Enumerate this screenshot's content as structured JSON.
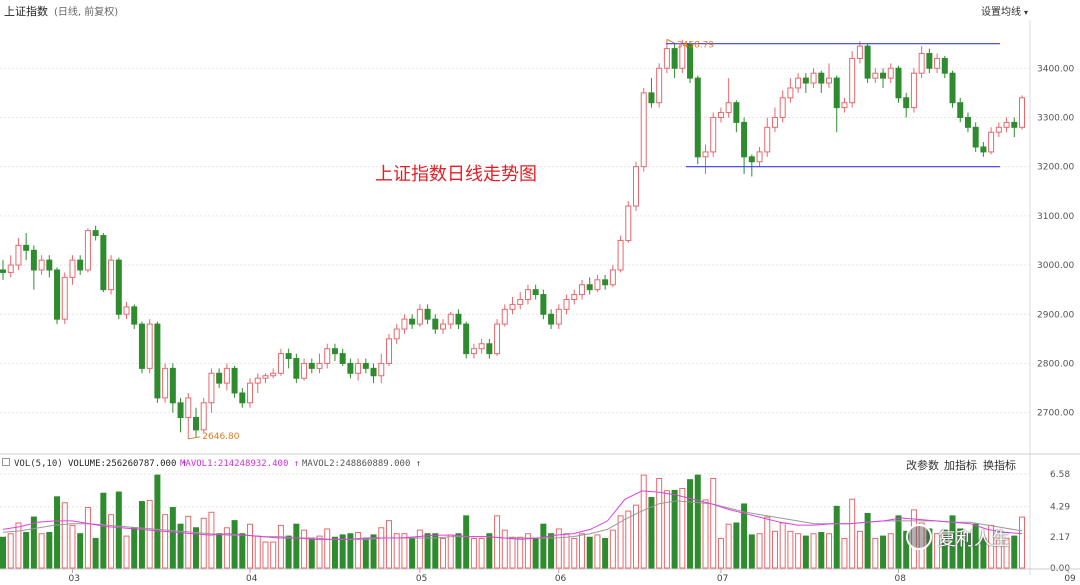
{
  "header": {
    "title": "上证指数",
    "subtitle": "(日线, 前复权)",
    "ma_setting": "设置均线"
  },
  "annotation": {
    "caption": "上证指数日线走势图",
    "high_label": "3458.79",
    "low_label": "2646.80"
  },
  "volume_panel": {
    "label": "VOL(5,10)",
    "volume": "VOLUME:256260787.000",
    "mavol1": "MAVOL1:214248932.400",
    "mavol2": "MAVOL2:248860889.000",
    "tools": {
      "params": "改参数",
      "add": "加指标",
      "switch": "换指标"
    },
    "axis_labels": [
      "6.58",
      "4.29",
      "2.17",
      "0.00"
    ]
  },
  "watermark": "复利人生",
  "colors": {
    "up": "#e8686e",
    "down": "#2e8b2e",
    "mavol1": "#e040e0",
    "mavol2": "#999999",
    "channel": "#3c3cf0",
    "caption": "#e41f25"
  },
  "chart_data": {
    "type": "candlestick",
    "price_ticks": [
      2700,
      2800,
      2900,
      3000,
      3100,
      3200,
      3300,
      3400
    ],
    "price_range": [
      2620,
      3490
    ],
    "month_labels": [
      "03",
      "04",
      "05",
      "06",
      "07",
      "08",
      "09"
    ],
    "month_start_index": [
      9,
      32,
      54,
      72,
      93,
      116,
      138
    ],
    "high": 3458.79,
    "low": 2646.8,
    "channel_top": 3450,
    "channel_bottom": 3200,
    "candles": [
      [
        2990,
        2985,
        3010,
        2970
      ],
      [
        2985,
        3000,
        3020,
        2975
      ],
      [
        3000,
        3040,
        3055,
        2990
      ],
      [
        3040,
        3030,
        3065,
        3010
      ],
      [
        3030,
        2990,
        3040,
        2950
      ],
      [
        2990,
        3010,
        3020,
        2980
      ],
      [
        3010,
        2990,
        3020,
        2975
      ],
      [
        2990,
        2890,
        2995,
        2880
      ],
      [
        2890,
        2975,
        2985,
        2880
      ],
      [
        2975,
        3010,
        3020,
        2960
      ],
      [
        3010,
        2990,
        3020,
        2980
      ],
      [
        2990,
        3070,
        3075,
        2985
      ],
      [
        3070,
        3060,
        3080,
        3050
      ],
      [
        3060,
        2950,
        3065,
        2945
      ],
      [
        2950,
        3010,
        3020,
        2940
      ],
      [
        3010,
        2900,
        3015,
        2890
      ],
      [
        2900,
        2915,
        2925,
        2890
      ],
      [
        2915,
        2880,
        2920,
        2870
      ],
      [
        2880,
        2790,
        2885,
        2780
      ],
      [
        2790,
        2880,
        2890,
        2780
      ],
      [
        2880,
        2730,
        2885,
        2720
      ],
      [
        2730,
        2790,
        2800,
        2720
      ],
      [
        2790,
        2720,
        2800,
        2700
      ],
      [
        2720,
        2690,
        2730,
        2660
      ],
      [
        2690,
        2730,
        2740,
        2646.8
      ],
      [
        2690,
        2665,
        2710,
        2650
      ],
      [
        2665,
        2720,
        2730,
        2660
      ],
      [
        2720,
        2780,
        2790,
        2700
      ],
      [
        2780,
        2760,
        2790,
        2750
      ],
      [
        2760,
        2790,
        2800,
        2745
      ],
      [
        2790,
        2740,
        2795,
        2730
      ],
      [
        2740,
        2720,
        2750,
        2710
      ],
      [
        2720,
        2760,
        2770,
        2710
      ],
      [
        2760,
        2770,
        2780,
        2740
      ],
      [
        2770,
        2775,
        2780,
        2760
      ],
      [
        2775,
        2780,
        2790,
        2770
      ],
      [
        2780,
        2820,
        2830,
        2775
      ],
      [
        2820,
        2810,
        2830,
        2790
      ],
      [
        2810,
        2770,
        2820,
        2760
      ],
      [
        2770,
        2800,
        2810,
        2765
      ],
      [
        2800,
        2790,
        2810,
        2780
      ],
      [
        2790,
        2800,
        2820,
        2780
      ],
      [
        2800,
        2830,
        2840,
        2790
      ],
      [
        2830,
        2820,
        2840,
        2805
      ],
      [
        2820,
        2800,
        2830,
        2795
      ],
      [
        2800,
        2780,
        2810,
        2770
      ],
      [
        2780,
        2800,
        2810,
        2765
      ],
      [
        2800,
        2790,
        2810,
        2780
      ],
      [
        2790,
        2775,
        2800,
        2760
      ],
      [
        2775,
        2800,
        2820,
        2760
      ],
      [
        2800,
        2850,
        2860,
        2795
      ],
      [
        2850,
        2870,
        2880,
        2840
      ],
      [
        2870,
        2890,
        2900,
        2860
      ],
      [
        2890,
        2880,
        2900,
        2870
      ],
      [
        2880,
        2910,
        2920,
        2875
      ],
      [
        2910,
        2890,
        2920,
        2880
      ],
      [
        2890,
        2870,
        2900,
        2860
      ],
      [
        2870,
        2880,
        2890,
        2860
      ],
      [
        2880,
        2900,
        2905,
        2870
      ],
      [
        2900,
        2880,
        2910,
        2870
      ],
      [
        2880,
        2820,
        2885,
        2810
      ],
      [
        2820,
        2830,
        2840,
        2810
      ],
      [
        2830,
        2840,
        2850,
        2820
      ],
      [
        2840,
        2820,
        2850,
        2810
      ],
      [
        2820,
        2880,
        2890,
        2815
      ],
      [
        2880,
        2910,
        2920,
        2875
      ],
      [
        2910,
        2920,
        2935,
        2900
      ],
      [
        2920,
        2930,
        2945,
        2910
      ],
      [
        2930,
        2950,
        2960,
        2920
      ],
      [
        2950,
        2940,
        2960,
        2930
      ],
      [
        2940,
        2900,
        2950,
        2890
      ],
      [
        2900,
        2880,
        2910,
        2870
      ],
      [
        2880,
        2910,
        2920,
        2870
      ],
      [
        2910,
        2930,
        2940,
        2900
      ],
      [
        2930,
        2940,
        2950,
        2920
      ],
      [
        2940,
        2960,
        2970,
        2930
      ],
      [
        2960,
        2950,
        2975,
        2940
      ],
      [
        2950,
        2970,
        2980,
        2945
      ],
      [
        2970,
        2960,
        2980,
        2950
      ],
      [
        2960,
        2990,
        3000,
        2955
      ],
      [
        2990,
        3050,
        3060,
        2985
      ],
      [
        3050,
        3120,
        3130,
        3045
      ],
      [
        3120,
        3200,
        3210,
        3110
      ],
      [
        3200,
        3350,
        3360,
        3190
      ],
      [
        3350,
        3330,
        3380,
        3320
      ],
      [
        3330,
        3400,
        3410,
        3320
      ],
      [
        3400,
        3440,
        3458.79,
        3390
      ],
      [
        3440,
        3400,
        3450,
        3380
      ],
      [
        3400,
        3450,
        3458,
        3390
      ],
      [
        3450,
        3380,
        3455,
        3370
      ],
      [
        3380,
        3220,
        3385,
        3205
      ],
      [
        3220,
        3230,
        3245,
        3185
      ],
      [
        3230,
        3300,
        3310,
        3220
      ],
      [
        3300,
        3310,
        3320,
        3290
      ],
      [
        3310,
        3330,
        3380,
        3300
      ],
      [
        3330,
        3290,
        3335,
        3270
      ],
      [
        3290,
        3220,
        3300,
        3185
      ],
      [
        3220,
        3210,
        3225,
        3180
      ],
      [
        3210,
        3230,
        3240,
        3200
      ],
      [
        3230,
        3280,
        3300,
        3220
      ],
      [
        3280,
        3300,
        3320,
        3270
      ],
      [
        3300,
        3340,
        3355,
        3290
      ],
      [
        3340,
        3360,
        3380,
        3330
      ],
      [
        3360,
        3380,
        3390,
        3350
      ],
      [
        3380,
        3370,
        3390,
        3350
      ],
      [
        3370,
        3390,
        3400,
        3360
      ],
      [
        3390,
        3370,
        3395,
        3350
      ],
      [
        3370,
        3380,
        3410,
        3360
      ],
      [
        3380,
        3320,
        3385,
        3270
      ],
      [
        3320,
        3330,
        3340,
        3310
      ],
      [
        3330,
        3420,
        3435,
        3320
      ],
      [
        3420,
        3445,
        3455,
        3410
      ],
      [
        3445,
        3380,
        3450,
        3370
      ],
      [
        3380,
        3390,
        3400,
        3370
      ],
      [
        3390,
        3380,
        3400,
        3360
      ],
      [
        3380,
        3400,
        3410,
        3370
      ],
      [
        3400,
        3340,
        3405,
        3330
      ],
      [
        3340,
        3320,
        3350,
        3300
      ],
      [
        3320,
        3390,
        3400,
        3310
      ],
      [
        3390,
        3430,
        3445,
        3380
      ],
      [
        3430,
        3400,
        3440,
        3390
      ],
      [
        3400,
        3420,
        3430,
        3390
      ],
      [
        3420,
        3390,
        3425,
        3380
      ],
      [
        3390,
        3330,
        3395,
        3320
      ],
      [
        3330,
        3300,
        3340,
        3290
      ],
      [
        3300,
        3280,
        3310,
        3270
      ],
      [
        3280,
        3240,
        3290,
        3230
      ],
      [
        3240,
        3230,
        3250,
        3220
      ],
      [
        3230,
        3270,
        3280,
        3225
      ],
      [
        3270,
        3280,
        3290,
        3260
      ],
      [
        3280,
        3290,
        3300,
        3270
      ],
      [
        3290,
        3280,
        3300,
        3260
      ],
      [
        3280,
        3340,
        3345,
        3275
      ]
    ],
    "volume_ma": {
      "mavol1_points": [
        2.7,
        2.9,
        3.2,
        3.3,
        3.3,
        3.1,
        2.9,
        2.8,
        2.7,
        2.6,
        2.5,
        2.4,
        2.3,
        2.4,
        2.3,
        2.2,
        2.1,
        2.1,
        2.0,
        2.0,
        2.0,
        2.1,
        2.1,
        2.1,
        2.2,
        2.3,
        2.3,
        2.2,
        2.2,
        2.1,
        2.0,
        2.1,
        2.3,
        2.4,
        2.7,
        3.3,
        4.8,
        5.4,
        5.3,
        5.1,
        4.8,
        4.5,
        4.1,
        3.8,
        3.5,
        3.2,
        3.0,
        3.0,
        3.1,
        3.1,
        3.2,
        3.3,
        3.5,
        3.4,
        3.3,
        3.2,
        3.1,
        2.7,
        2.5,
        2.4
      ],
      "mavol2_points": [
        2.5,
        2.6,
        2.8,
        3.0,
        3.1,
        3.1,
        3.0,
        2.9,
        2.8,
        2.7,
        2.6,
        2.5,
        2.4,
        2.3,
        2.3,
        2.2,
        2.2,
        2.1,
        2.1,
        2.0,
        2.0,
        2.0,
        2.1,
        2.1,
        2.1,
        2.1,
        2.2,
        2.2,
        2.2,
        2.1,
        2.1,
        2.1,
        2.1,
        2.2,
        2.4,
        2.7,
        3.4,
        4.0,
        4.5,
        4.7,
        4.6,
        4.5,
        4.2,
        3.9,
        3.7,
        3.5,
        3.3,
        3.1,
        3.1,
        3.1,
        3.2,
        3.3,
        3.3,
        3.3,
        3.3,
        3.2,
        3.2,
        3.0,
        2.8,
        2.6
      ]
    }
  }
}
